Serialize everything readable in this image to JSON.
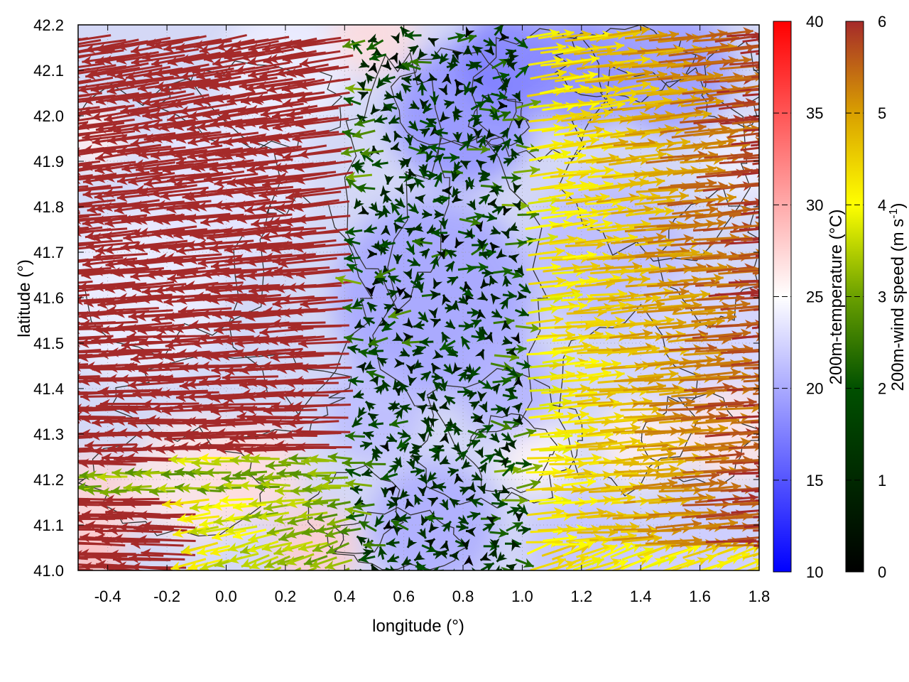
{
  "chart_data": {
    "type": "vector-field-map",
    "title": "",
    "xlabel": "longitude (°)",
    "ylabel": "latitude (°)",
    "xlim": [
      -0.5,
      1.8
    ],
    "ylim": [
      41.0,
      42.2
    ],
    "xticks": [
      "-0.4",
      "-0.2",
      "0.0",
      "0.2",
      "0.4",
      "0.6",
      "0.8",
      "1.0",
      "1.2",
      "1.4",
      "1.6",
      "1.8"
    ],
    "xtick_values": [
      -0.4,
      -0.2,
      0.0,
      0.2,
      0.4,
      0.6,
      0.8,
      1.0,
      1.2,
      1.4,
      1.6,
      1.8
    ],
    "yticks": [
      "41.0",
      "41.1",
      "41.2",
      "41.3",
      "41.4",
      "41.5",
      "41.6",
      "41.7",
      "41.8",
      "41.9",
      "42.0",
      "42.1",
      "42.2"
    ],
    "ytick_values": [
      41.0,
      41.1,
      41.2,
      41.3,
      41.4,
      41.5,
      41.6,
      41.7,
      41.8,
      41.9,
      42.0,
      42.1,
      42.2
    ],
    "grid": true,
    "background_field": {
      "name": "200m-temperature",
      "unit": "°C",
      "colorbar_label": "200m-temperature (°C)",
      "range": [
        10,
        40
      ],
      "ticks": [
        "10",
        "15",
        "20",
        "25",
        "30",
        "35",
        "40"
      ],
      "tick_values": [
        10,
        15,
        20,
        25,
        30,
        35,
        40
      ],
      "colormap": [
        "#0000ff",
        "#ffffff",
        "#ff0000"
      ],
      "typical_values": {
        "interior_blue": 20,
        "margins_warm": 28,
        "coast_southwest": 30
      }
    },
    "vector_field": {
      "name": "200m-wind speed",
      "colorbar_label": "200m-wind speed (m s-1)",
      "unit_base": "200m-wind speed (m s",
      "unit_exp": "-1",
      "unit_close": ")",
      "range": [
        0,
        6
      ],
      "ticks": [
        "0",
        "1",
        "2",
        "3",
        "4",
        "5",
        "6"
      ],
      "tick_values": [
        0,
        1,
        2,
        3,
        4,
        5,
        6
      ],
      "colormap": [
        "#000000",
        "#005000",
        "#6aa000",
        "#ffff00",
        "#d9a000",
        "#c06010",
        "#a52a2a"
      ],
      "regions": [
        {
          "name": "west",
          "lon_range": [
            -0.5,
            0.5
          ],
          "direction": "westward",
          "speed": 6
        },
        {
          "name": "center",
          "lon_range": [
            0.5,
            1.0
          ],
          "direction": "variable",
          "speed": 2
        },
        {
          "name": "east",
          "lon_range": [
            1.0,
            1.8
          ],
          "direction": "eastward",
          "speed": 4.5
        }
      ]
    },
    "contours": {
      "color": "#333333",
      "description": "terrain elevation contours"
    }
  }
}
